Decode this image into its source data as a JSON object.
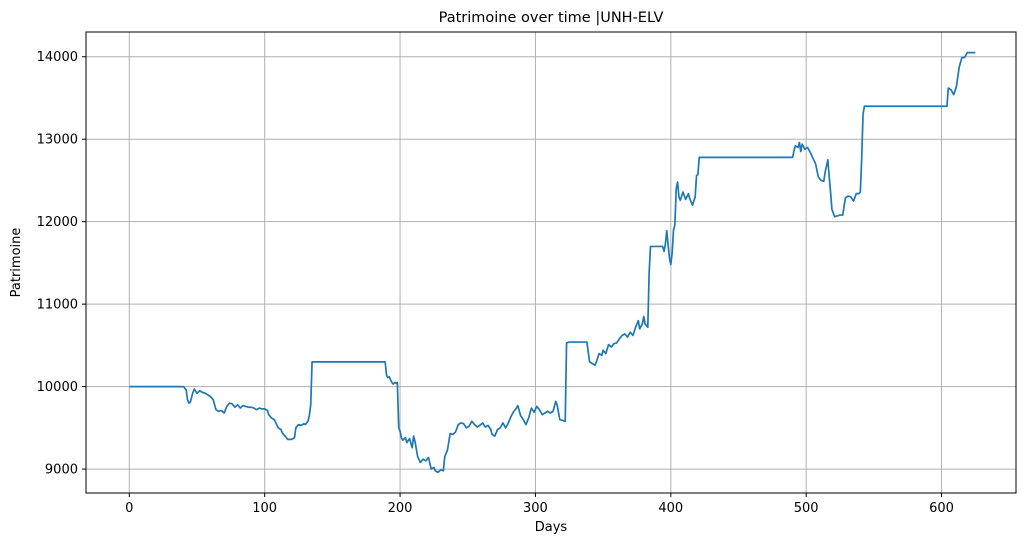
{
  "chart_data": {
    "type": "line",
    "title": "Patrimoine over time |UNH-ELV",
    "xlabel": "Days",
    "ylabel": "Patrimoine",
    "xlim": [
      -32,
      655
    ],
    "ylim": [
      8710,
      14300
    ],
    "xticks": [
      0,
      100,
      200,
      300,
      400,
      500,
      600
    ],
    "yticks": [
      9000,
      10000,
      11000,
      12000,
      13000,
      14000
    ],
    "xtick_labels": [
      "0",
      "100",
      "200",
      "300",
      "400",
      "500",
      "600"
    ],
    "ytick_labels": [
      "9000",
      "10000",
      "11000",
      "12000",
      "13000",
      "14000"
    ],
    "grid": true,
    "legend": "none",
    "series": [
      {
        "color": "#1f77b4",
        "points": [
          [
            0,
            10000
          ],
          [
            40,
            10000
          ],
          [
            42,
            9960
          ],
          [
            43,
            9840
          ],
          [
            44,
            9800
          ],
          [
            45,
            9810
          ],
          [
            47,
            9930
          ],
          [
            48,
            9970
          ],
          [
            50,
            9920
          ],
          [
            52,
            9950
          ],
          [
            54,
            9930
          ],
          [
            56,
            9920
          ],
          [
            58,
            9900
          ],
          [
            60,
            9880
          ],
          [
            62,
            9840
          ],
          [
            63,
            9780
          ],
          [
            64,
            9720
          ],
          [
            66,
            9700
          ],
          [
            68,
            9710
          ],
          [
            70,
            9680
          ],
          [
            72,
            9760
          ],
          [
            74,
            9800
          ],
          [
            76,
            9790
          ],
          [
            78,
            9750
          ],
          [
            80,
            9780
          ],
          [
            82,
            9740
          ],
          [
            84,
            9770
          ],
          [
            86,
            9760
          ],
          [
            88,
            9750
          ],
          [
            90,
            9750
          ],
          [
            92,
            9740
          ],
          [
            94,
            9720
          ],
          [
            96,
            9740
          ],
          [
            98,
            9730
          ],
          [
            100,
            9730
          ],
          [
            102,
            9710
          ],
          [
            103,
            9660
          ],
          [
            105,
            9620
          ],
          [
            107,
            9600
          ],
          [
            108,
            9570
          ],
          [
            110,
            9500
          ],
          [
            112,
            9480
          ],
          [
            113,
            9440
          ],
          [
            115,
            9400
          ],
          [
            117,
            9360
          ],
          [
            120,
            9360
          ],
          [
            122,
            9380
          ],
          [
            123,
            9500
          ],
          [
            125,
            9540
          ],
          [
            127,
            9530
          ],
          [
            129,
            9550
          ],
          [
            130,
            9540
          ],
          [
            132,
            9580
          ],
          [
            133,
            9650
          ],
          [
            134,
            9780
          ],
          [
            135,
            10300
          ],
          [
            189,
            10300
          ],
          [
            190,
            10140
          ],
          [
            191,
            10110
          ],
          [
            192,
            10120
          ],
          [
            193,
            10080
          ],
          [
            194,
            10050
          ],
          [
            195,
            10030
          ],
          [
            196,
            10050
          ],
          [
            197,
            10040
          ],
          [
            198,
            10050
          ],
          [
            199,
            9500
          ],
          [
            200,
            9460
          ],
          [
            201,
            9380
          ],
          [
            202,
            9350
          ],
          [
            204,
            9380
          ],
          [
            205,
            9320
          ],
          [
            207,
            9370
          ],
          [
            208,
            9310
          ],
          [
            209,
            9260
          ],
          [
            210,
            9400
          ],
          [
            211,
            9340
          ],
          [
            213,
            9150
          ],
          [
            215,
            9080
          ],
          [
            217,
            9120
          ],
          [
            219,
            9100
          ],
          [
            221,
            9140
          ],
          [
            223,
            9000
          ],
          [
            225,
            9020
          ],
          [
            226,
            8980
          ],
          [
            228,
            8960
          ],
          [
            230,
            8990
          ],
          [
            232,
            8980
          ],
          [
            233,
            9150
          ],
          [
            235,
            9230
          ],
          [
            237,
            9430
          ],
          [
            239,
            9420
          ],
          [
            241,
            9450
          ],
          [
            243,
            9540
          ],
          [
            245,
            9560
          ],
          [
            247,
            9550
          ],
          [
            249,
            9500
          ],
          [
            251,
            9520
          ],
          [
            253,
            9580
          ],
          [
            255,
            9540
          ],
          [
            257,
            9510
          ],
          [
            259,
            9530
          ],
          [
            261,
            9560
          ],
          [
            263,
            9510
          ],
          [
            265,
            9530
          ],
          [
            267,
            9480
          ],
          [
            268,
            9420
          ],
          [
            270,
            9400
          ],
          [
            272,
            9480
          ],
          [
            274,
            9500
          ],
          [
            276,
            9560
          ],
          [
            278,
            9500
          ],
          [
            280,
            9560
          ],
          [
            282,
            9640
          ],
          [
            284,
            9700
          ],
          [
            286,
            9740
          ],
          [
            287,
            9770
          ],
          [
            289,
            9650
          ],
          [
            291,
            9600
          ],
          [
            293,
            9540
          ],
          [
            295,
            9620
          ],
          [
            297,
            9740
          ],
          [
            299,
            9690
          ],
          [
            301,
            9760
          ],
          [
            303,
            9720
          ],
          [
            305,
            9660
          ],
          [
            307,
            9680
          ],
          [
            309,
            9700
          ],
          [
            311,
            9680
          ],
          [
            313,
            9700
          ],
          [
            315,
            9820
          ],
          [
            316,
            9780
          ],
          [
            318,
            9600
          ],
          [
            320,
            9590
          ],
          [
            322,
            9580
          ],
          [
            323,
            10530
          ],
          [
            325,
            10540
          ],
          [
            338,
            10540
          ],
          [
            340,
            10300
          ],
          [
            342,
            10280
          ],
          [
            344,
            10260
          ],
          [
            345,
            10300
          ],
          [
            347,
            10400
          ],
          [
            349,
            10380
          ],
          [
            350,
            10440
          ],
          [
            352,
            10400
          ],
          [
            354,
            10510
          ],
          [
            356,
            10480
          ],
          [
            358,
            10520
          ],
          [
            360,
            10530
          ],
          [
            362,
            10580
          ],
          [
            364,
            10620
          ],
          [
            366,
            10640
          ],
          [
            368,
            10600
          ],
          [
            370,
            10660
          ],
          [
            372,
            10620
          ],
          [
            374,
            10720
          ],
          [
            376,
            10800
          ],
          [
            377,
            10700
          ],
          [
            379,
            10760
          ],
          [
            380,
            10850
          ],
          [
            381,
            10760
          ],
          [
            383,
            10720
          ],
          [
            384,
            11380
          ],
          [
            385,
            11700
          ],
          [
            394,
            11700
          ],
          [
            395,
            11640
          ],
          [
            396,
            11730
          ],
          [
            397,
            11890
          ],
          [
            398,
            11720
          ],
          [
            399,
            11560
          ],
          [
            400,
            11480
          ],
          [
            401,
            11620
          ],
          [
            402,
            11900
          ],
          [
            403,
            11960
          ],
          [
            404,
            12400
          ],
          [
            405,
            12480
          ],
          [
            406,
            12300
          ],
          [
            407,
            12260
          ],
          [
            409,
            12360
          ],
          [
            411,
            12270
          ],
          [
            413,
            12340
          ],
          [
            414,
            12280
          ],
          [
            416,
            12200
          ],
          [
            418,
            12300
          ],
          [
            419,
            12560
          ],
          [
            420,
            12570
          ],
          [
            421,
            12780
          ],
          [
            490,
            12780
          ],
          [
            491,
            12860
          ],
          [
            492,
            12920
          ],
          [
            494,
            12900
          ],
          [
            495,
            12960
          ],
          [
            496,
            12850
          ],
          [
            497,
            12940
          ],
          [
            499,
            12880
          ],
          [
            501,
            12900
          ],
          [
            503,
            12840
          ],
          [
            505,
            12770
          ],
          [
            507,
            12700
          ],
          [
            509,
            12540
          ],
          [
            511,
            12500
          ],
          [
            513,
            12490
          ],
          [
            514,
            12600
          ],
          [
            516,
            12750
          ],
          [
            517,
            12550
          ],
          [
            518,
            12360
          ],
          [
            519,
            12150
          ],
          [
            521,
            12060
          ],
          [
            523,
            12070
          ],
          [
            525,
            12080
          ],
          [
            527,
            12080
          ],
          [
            529,
            12290
          ],
          [
            531,
            12310
          ],
          [
            533,
            12300
          ],
          [
            535,
            12250
          ],
          [
            537,
            12340
          ],
          [
            539,
            12340
          ],
          [
            540,
            12360
          ],
          [
            541,
            12760
          ],
          [
            542,
            13300
          ],
          [
            543,
            13400
          ],
          [
            604,
            13400
          ],
          [
            605,
            13620
          ],
          [
            607,
            13600
          ],
          [
            609,
            13540
          ],
          [
            611,
            13640
          ],
          [
            613,
            13870
          ],
          [
            615,
            13990
          ],
          [
            617,
            13990
          ],
          [
            619,
            14050
          ],
          [
            625,
            14050
          ]
        ]
      }
    ]
  }
}
